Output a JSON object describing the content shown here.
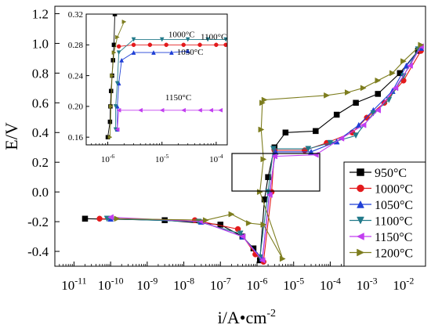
{
  "chart_data": [
    {
      "type": "line",
      "title": "",
      "xlabel": "i/A•cm",
      "xlabel_sup": "-2",
      "ylabel": "E/V",
      "x_scale": "log",
      "xlim": [
        3e-12,
        0.04
      ],
      "ylim": [
        -0.5,
        1.25
      ],
      "x_ticks": [
        {
          "exp": "-11",
          "v": 1e-11
        },
        {
          "exp": "-10",
          "v": 1e-10
        },
        {
          "exp": "-9",
          "v": 1e-09
        },
        {
          "exp": "-8",
          "v": 1e-08
        },
        {
          "exp": "-7",
          "v": 1e-07
        },
        {
          "exp": "-6",
          "v": 1e-06
        },
        {
          "exp": "-5",
          "v": 1e-05
        },
        {
          "exp": "-4",
          "v": 0.0001
        },
        {
          "exp": "-3",
          "v": 0.001
        },
        {
          "exp": "-2",
          "v": 0.01
        }
      ],
      "x_tick_base": "10",
      "y_ticks": [
        {
          "label": "-0.4",
          "v": -0.4
        },
        {
          "label": "-0.2",
          "v": -0.2
        },
        {
          "label": "0.0",
          "v": 0.0
        },
        {
          "label": "0.2",
          "v": 0.2
        },
        {
          "label": "0.4",
          "v": 0.4
        },
        {
          "label": "0.6",
          "v": 0.6
        },
        {
          "label": "0.8",
          "v": 0.8
        },
        {
          "label": "1.0",
          "v": 1.0
        },
        {
          "label": "1.2",
          "v": 1.2
        }
      ],
      "legend_position": "bottom-right",
      "series": [
        {
          "name": "950°C",
          "color": "#000000",
          "marker": "square",
          "x": [
            2e-11,
            3e-09,
            1e-07,
            4e-07,
            8e-07,
            1.2e-06,
            1.6e-06,
            2e-06,
            3e-06,
            6e-06,
            4e-05,
            0.00015,
            0.0005,
            0.002,
            0.008,
            0.025
          ],
          "y": [
            -0.18,
            -0.19,
            -0.22,
            -0.3,
            -0.38,
            -0.46,
            -0.05,
            0.1,
            0.3,
            0.4,
            0.41,
            0.52,
            0.6,
            0.66,
            0.8,
            0.95
          ]
        },
        {
          "name": "1000°C",
          "color": "#e31a1c",
          "marker": "circle",
          "x": [
            5e-11,
            2e-08,
            3e-07,
            9e-07,
            1.5e-06,
            2.5e-06,
            3e-06,
            2e-05,
            8e-05,
            0.0004,
            0.001,
            0.003,
            0.01,
            0.03
          ],
          "y": [
            -0.18,
            -0.19,
            -0.25,
            -0.42,
            -0.47,
            0.0,
            0.28,
            0.28,
            0.33,
            0.4,
            0.5,
            0.6,
            0.75,
            0.95
          ]
        },
        {
          "name": "1050°C",
          "color": "#1f3fd6",
          "marker": "triangle-up",
          "x": [
            1e-10,
            3e-08,
            4e-07,
            1.4e-06,
            2.2e-06,
            3.2e-06,
            3e-05,
            0.00015,
            0.0006,
            0.0015,
            0.005,
            0.012,
            0.03
          ],
          "y": [
            -0.18,
            -0.2,
            -0.3,
            -0.45,
            0.0,
            0.27,
            0.27,
            0.34,
            0.45,
            0.55,
            0.68,
            0.85,
            0.97
          ]
        },
        {
          "name": "1100°C",
          "color": "#227a8a",
          "marker": "triangle-down",
          "x": [
            8e-11,
            2.5e-08,
            3.5e-07,
            1.2e-06,
            2e-06,
            2.8e-06,
            2.5e-05,
            0.0001,
            0.0005,
            0.0015,
            0.004,
            0.01,
            0.025
          ],
          "y": [
            -0.18,
            -0.2,
            -0.28,
            -0.44,
            0.0,
            0.29,
            0.29,
            0.33,
            0.38,
            0.53,
            0.62,
            0.78,
            0.96
          ]
        },
        {
          "name": "1150°C",
          "color": "#c23ef0",
          "marker": "triangle-left",
          "x": [
            1e-10,
            3e-08,
            4e-07,
            1.4e-06,
            2.2e-06,
            3e-06,
            4e-05,
            0.0002,
            0.0008,
            0.002,
            0.006,
            0.015,
            0.03
          ],
          "y": [
            -0.17,
            -0.2,
            -0.3,
            -0.46,
            -0.02,
            0.24,
            0.25,
            0.36,
            0.45,
            0.55,
            0.7,
            0.85,
            0.98
          ]
        },
        {
          "name": "1200°C",
          "color": "#7d7d1e",
          "marker": "triangle-right",
          "x": [
            1.5e-10,
            4e-08,
            2e-07,
            6e-07,
            1.5e-06,
            5e-06,
            1.2e-06,
            1.5e-06,
            1.3e-06,
            1.4e-06,
            1.6e-06,
            8e-05,
            0.0003,
            0.0008,
            0.002,
            0.005,
            0.01,
            0.03
          ],
          "y": [
            -0.18,
            -0.19,
            -0.15,
            -0.21,
            -0.22,
            -0.45,
            0.0,
            0.22,
            0.42,
            0.6,
            0.62,
            0.65,
            0.67,
            0.7,
            0.75,
            0.8,
            0.88,
            0.99
          ]
        }
      ]
    },
    {
      "type": "line",
      "title": "",
      "xlabel": "",
      "ylabel": "",
      "x_scale": "log",
      "xlim": [
        4e-07,
        0.00016
      ],
      "ylim": [
        0.15,
        0.32
      ],
      "x_ticks": [
        {
          "exp": "-6",
          "v": 1e-06
        },
        {
          "exp": "-5",
          "v": 1e-05
        },
        {
          "exp": "-4",
          "v": 0.0001
        }
      ],
      "x_tick_base": "10",
      "y_ticks": [
        {
          "label": "0.16",
          "v": 0.16
        },
        {
          "label": "0.20",
          "v": 0.2
        },
        {
          "label": "0.24",
          "v": 0.24
        },
        {
          "label": "0.28",
          "v": 0.28
        },
        {
          "label": "0.32",
          "v": 0.32
        }
      ],
      "annotations": [
        {
          "text": "1000°C",
          "x": 2.3e-05,
          "y": 0.29
        },
        {
          "text": "1100°C",
          "x": 9e-05,
          "y": 0.287
        },
        {
          "text": "1050°C",
          "x": 3.3e-05,
          "y": 0.267
        },
        {
          "text": "1150°C",
          "x": 2e-05,
          "y": 0.208
        }
      ],
      "series": [
        {
          "name": "950°C",
          "color": "#000000",
          "marker": "square",
          "x": [
            1e-06,
            1.1e-06,
            1.12e-06,
            1.15e-06,
            1.2e-06,
            1.25e-06,
            1.3e-06,
            1.35e-06
          ],
          "y": [
            0.16,
            0.18,
            0.2,
            0.22,
            0.24,
            0.26,
            0.28,
            0.32
          ]
        },
        {
          "name": "1000°C",
          "color": "#e31a1c",
          "marker": "circle",
          "x": [
            1.6e-06,
            3e-06,
            6e-06,
            1.2e-05,
            2.5e-05,
            5e-05,
            0.0001,
            0.00015
          ],
          "y": [
            0.278,
            0.28,
            0.28,
            0.28,
            0.28,
            0.28,
            0.28,
            0.28
          ]
        },
        {
          "name": "1050°C",
          "color": "#1f3fd6",
          "marker": "triangle-up",
          "x": [
            1.5e-06,
            1.5e-06,
            1.6e-06,
            1.8e-06,
            3e-06,
            7e-06,
            1.5e-05,
            3e-05
          ],
          "y": [
            0.17,
            0.2,
            0.23,
            0.26,
            0.27,
            0.27,
            0.27,
            0.272
          ]
        },
        {
          "name": "1100°C",
          "color": "#227a8a",
          "marker": "triangle-down",
          "x": [
            1.4e-06,
            1.4e-06,
            1.5e-06,
            1.6e-06,
            3e-06,
            1e-05,
            3e-05,
            7e-05,
            0.00015
          ],
          "y": [
            0.17,
            0.2,
            0.23,
            0.27,
            0.287,
            0.287,
            0.287,
            0.287,
            0.287
          ]
        },
        {
          "name": "1150°C",
          "color": "#c23ef0",
          "marker": "triangle-left",
          "x": [
            1.5e-06,
            1.6e-06,
            4e-06,
            1e-05,
            2.5e-05,
            5e-05,
            8e-05,
            0.00012
          ],
          "y": [
            0.17,
            0.195,
            0.195,
            0.195,
            0.195,
            0.195,
            0.195,
            0.195
          ]
        },
        {
          "name": "1200°C",
          "color": "#7d7d1e",
          "marker": "triangle-right",
          "x": [
            1.1e-06,
            1.15e-06,
            1.2e-06,
            1.3e-06,
            1.5e-06,
            2e-06
          ],
          "y": [
            0.16,
            0.2,
            0.24,
            0.27,
            0.29,
            0.31
          ]
        }
      ]
    }
  ]
}
